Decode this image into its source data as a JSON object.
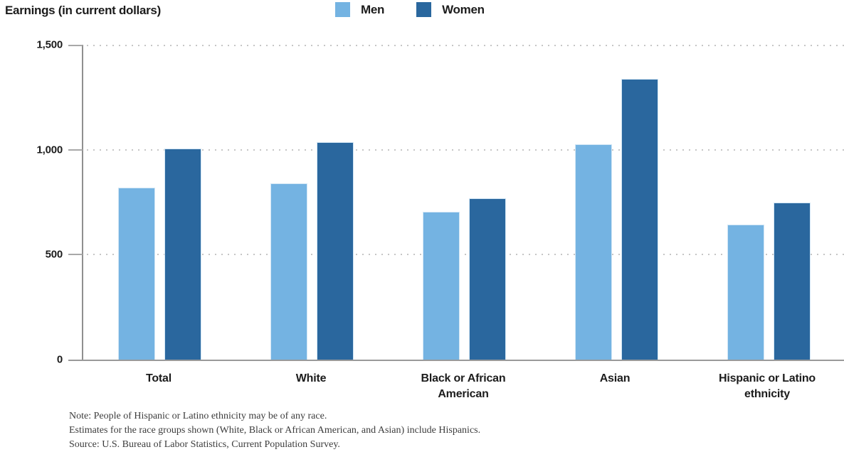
{
  "chart_data": {
    "type": "bar",
    "title": "Earnings (in current dollars)",
    "categories": [
      "Total",
      "White",
      "Black or African American",
      "Asian",
      "Hispanic or Latino ethnicity"
    ],
    "series": [
      {
        "name": "Men",
        "color": "#74B3E2",
        "values": [
          821,
          840,
          704,
          1025,
          642
        ]
      },
      {
        "name": "Women",
        "color": "#2A679E",
        "values": [
          1007,
          1036,
          769,
          1336,
          747
        ]
      }
    ],
    "xlabel": "",
    "ylabel": "Earnings (in current dollars)",
    "ylim": [
      0,
      1500
    ],
    "yticks": [
      {
        "value": 0,
        "label": "0"
      },
      {
        "value": 500,
        "label": "500"
      },
      {
        "value": 1000,
        "label": "1,000"
      },
      {
        "value": 1500,
        "label": "1,500"
      }
    ],
    "grid": "horizontal-dotted",
    "legend_position": "top-center"
  },
  "notes": [
    "Note: People of Hispanic or Latino ethnicity may be of any race.",
    "Estimates for the race groups shown (White, Black or African American, and Asian) include Hispanics.",
    "Source: U.S. Bureau of Labor Statistics, Current Population Survey."
  ],
  "colors": {
    "men_bar": "#74B3E2",
    "women_bar": "#2A679E",
    "bar_edge": "#d2e6f5",
    "gridline": "#c6c6c6",
    "axis": "#8f8f8f",
    "text": "#1c1c1c",
    "note_text": "#3c3c3c"
  }
}
